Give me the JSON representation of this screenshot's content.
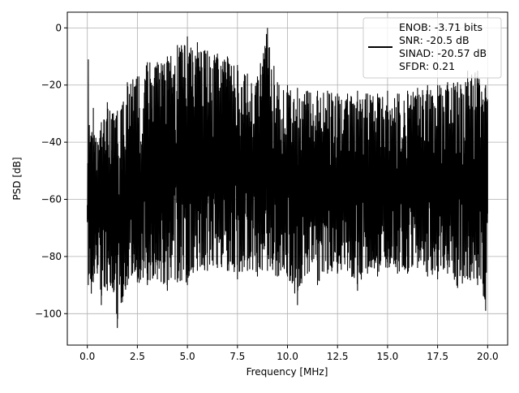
{
  "chart_data": {
    "type": "line",
    "title": "",
    "xlabel": "Frequency [MHz]",
    "ylabel": "PSD [dB]",
    "xlim": [
      -1.0,
      21.0
    ],
    "ylim": [
      -111,
      5.5
    ],
    "xticks": [
      0.0,
      2.5,
      5.0,
      7.5,
      10.0,
      12.5,
      15.0,
      17.5,
      20.0
    ],
    "xtick_labels": [
      "0.0",
      "2.5",
      "5.0",
      "7.5",
      "10.0",
      "12.5",
      "15.0",
      "17.5",
      "20.0"
    ],
    "yticks": [
      0,
      -20,
      -40,
      -60,
      -80,
      -100
    ],
    "ytick_labels": [
      "0",
      "−20",
      "−40",
      "−60",
      "−80",
      "−100"
    ],
    "grid": true,
    "legend_position": "top-right",
    "series": [
      {
        "name": "ENOB: -3.71 bits\nSNR: -20.5 dB\nSINAD: -20.57 dB\nSFDR: 0.21",
        "color": "#000000",
        "x": [
          0.0,
          0.05,
          0.1,
          0.2,
          0.3,
          0.5,
          0.7,
          1.0,
          1.25,
          1.5,
          1.75,
          2.0,
          2.5,
          3.0,
          3.5,
          4.0,
          4.5,
          5.0,
          5.5,
          6.0,
          6.5,
          7.0,
          7.5,
          8.0,
          8.5,
          9.0,
          9.5,
          10.0,
          10.5,
          11.0,
          11.5,
          12.0,
          12.5,
          13.0,
          13.5,
          14.0,
          14.5,
          15.0,
          15.5,
          16.0,
          16.5,
          17.0,
          17.5,
          18.0,
          18.5,
          19.0,
          19.5,
          19.9,
          20.0
        ],
        "upper": [
          -62,
          -11,
          -34,
          -38,
          -28,
          -40,
          -33,
          -26,
          -30,
          -29,
          -27,
          -19,
          -17,
          -12,
          -12,
          -10,
          -6,
          -3,
          -5,
          -8,
          -9,
          -10,
          -13,
          -16,
          -17,
          0,
          -19,
          -20,
          -21,
          -22,
          -22,
          -22,
          -23,
          -23,
          -22,
          -23,
          -23,
          -22,
          -23,
          -22,
          -21,
          -20,
          -20,
          -19,
          -19,
          -15,
          -15,
          -20,
          -25
        ],
        "lower": [
          -68,
          -90,
          -86,
          -93,
          -89,
          -86,
          -97,
          -92,
          -91,
          -105,
          -96,
          -90,
          -89,
          -90,
          -88,
          -92,
          -89,
          -90,
          -85,
          -85,
          -84,
          -85,
          -88,
          -85,
          -87,
          -85,
          -87,
          -87,
          -97,
          -86,
          -90,
          -86,
          -86,
          -85,
          -92,
          -86,
          -87,
          -84,
          -86,
          -86,
          -84,
          -87,
          -88,
          -86,
          -91,
          -88,
          -90,
          -99,
          -65
        ]
      }
    ]
  }
}
